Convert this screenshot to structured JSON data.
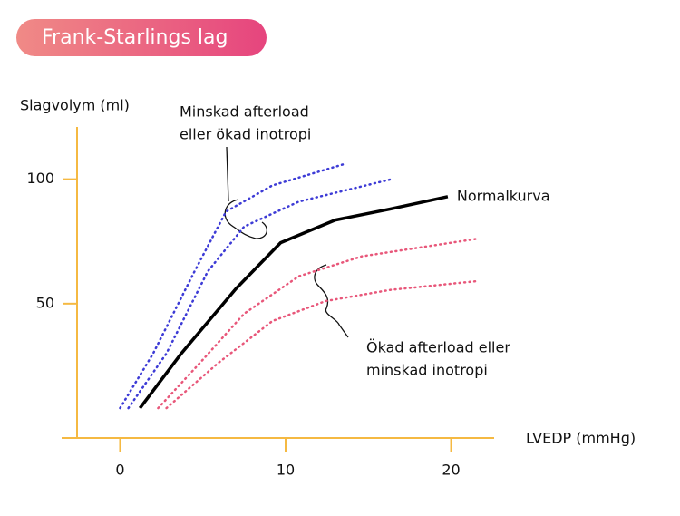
{
  "chart_data": {
    "type": "line",
    "title": "Frank-Starlings lag",
    "y_label": "Slagvolym (ml)",
    "x_label": "LVEDP (mmHg)",
    "xlim": [
      -2.6,
      22.6
    ],
    "ylim": [
      -4,
      121
    ],
    "xticks": [
      0,
      10,
      20
    ],
    "yticks": [
      50,
      100
    ],
    "axis_color": "#f5b942",
    "series": [
      {
        "color": "#3d3bd6",
        "dash": "dotted",
        "x": [
          0,
          2,
          4.5,
          6.4,
          9.2,
          13.5
        ],
        "values": [
          8,
          30,
          63,
          87,
          97.5,
          106
        ]
      },
      {
        "color": "#3d3bd6",
        "dash": "dotted",
        "x": [
          0.5,
          2.8,
          5.3,
          7.5,
          10.8,
          16.4
        ],
        "values": [
          8,
          30,
          63,
          81,
          91,
          100
        ]
      },
      {
        "name": "Normalkurva",
        "color": "#000000",
        "dash": "solid",
        "x": [
          1.2,
          3.7,
          7,
          9.7,
          13,
          16.3,
          19.8
        ],
        "values": [
          8,
          30,
          56,
          74.5,
          83.6,
          88,
          93
        ]
      },
      {
        "color": "#e8577a",
        "dash": "dotted",
        "x": [
          2.3,
          4.8,
          7.5,
          10.8,
          14.6,
          21.5
        ],
        "values": [
          8,
          26,
          46,
          61,
          69,
          76
        ]
      },
      {
        "color": "#e8577a",
        "dash": "dotted",
        "x": [
          2.8,
          5.9,
          9.2,
          12.4,
          16.3,
          21.5
        ],
        "values": [
          8,
          26,
          43,
          51,
          55.5,
          59
        ]
      }
    ],
    "annotations": [
      [
        "Minskad afterload",
        "eller ökad inotropi"
      ],
      [
        "Ökad afterload eller",
        "minskad inotropi"
      ]
    ]
  }
}
